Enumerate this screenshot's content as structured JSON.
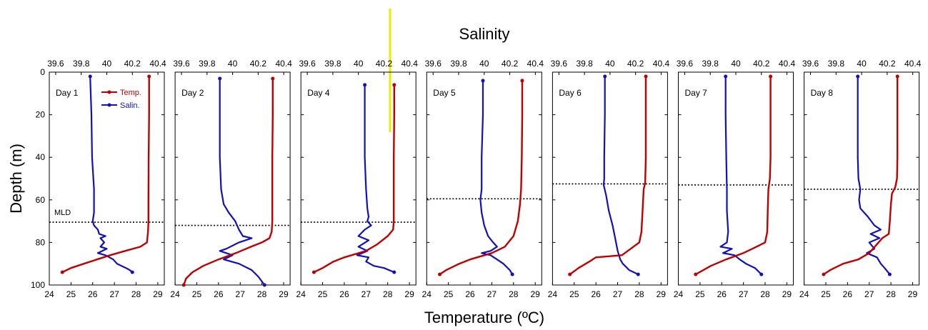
{
  "chart_data": {
    "type": "line",
    "title": "Salinity",
    "xlabel": "Temperature (ºC)",
    "ylabel": "Depth (m)",
    "xlim": [
      24,
      29.3
    ],
    "x2lim": [
      39.55,
      40.45
    ],
    "ylim": [
      0,
      100
    ],
    "y_inverted": true,
    "x_ticks": [
      "24",
      "25",
      "26",
      "27",
      "28",
      "29"
    ],
    "x2_ticks": [
      "39.6",
      "39.8",
      "40",
      "40.2",
      "40.4"
    ],
    "y_ticks": [
      "0",
      "20",
      "40",
      "60",
      "80",
      "100"
    ],
    "colors": {
      "temp": "#c00000",
      "salin": "#1010c0",
      "accent": "#e8ee00"
    },
    "legend": {
      "position": "top-right of first panel",
      "temp_label": "Temp.",
      "salin_label": "Salin."
    },
    "mld_label": "MLD",
    "panels": [
      {
        "label": "Day 1",
        "mld": 70.5,
        "temp": [
          [
            28.6,
            2
          ],
          [
            28.6,
            20
          ],
          [
            28.58,
            40
          ],
          [
            28.57,
            60
          ],
          [
            28.57,
            70
          ],
          [
            28.55,
            75
          ],
          [
            28.5,
            80
          ],
          [
            28.2,
            82
          ],
          [
            27.5,
            84
          ],
          [
            26.8,
            86
          ],
          [
            26.2,
            88
          ],
          [
            25.6,
            90
          ],
          [
            25.0,
            92
          ],
          [
            24.6,
            94
          ]
        ],
        "salin": [
          [
            39.87,
            2
          ],
          [
            39.88,
            20
          ],
          [
            39.885,
            40
          ],
          [
            39.9,
            55
          ],
          [
            39.9,
            66
          ],
          [
            39.89,
            70
          ],
          [
            39.9,
            72
          ],
          [
            39.93,
            74
          ],
          [
            39.94,
            76
          ],
          [
            39.99,
            77
          ],
          [
            39.95,
            78
          ],
          [
            39.98,
            80
          ],
          [
            39.95,
            82
          ],
          [
            40.0,
            83
          ],
          [
            39.93,
            85
          ],
          [
            39.99,
            86
          ],
          [
            40.05,
            88
          ],
          [
            40.08,
            90
          ],
          [
            40.15,
            92
          ],
          [
            40.18,
            93
          ],
          [
            40.2,
            94
          ]
        ]
      },
      {
        "label": "Day 2",
        "mld": 72,
        "temp": [
          [
            28.5,
            3
          ],
          [
            28.5,
            20
          ],
          [
            28.48,
            40
          ],
          [
            28.48,
            60
          ],
          [
            28.48,
            70
          ],
          [
            28.45,
            75
          ],
          [
            28.35,
            78
          ],
          [
            28.0,
            80
          ],
          [
            27.5,
            82
          ],
          [
            26.8,
            85
          ],
          [
            26.0,
            88
          ],
          [
            25.3,
            91
          ],
          [
            24.8,
            94
          ],
          [
            24.5,
            97
          ],
          [
            24.4,
            100
          ]
        ],
        "salin": [
          [
            39.9,
            3
          ],
          [
            39.9,
            20
          ],
          [
            39.9,
            40
          ],
          [
            39.91,
            55
          ],
          [
            39.93,
            62
          ],
          [
            39.97,
            66
          ],
          [
            40.02,
            70
          ],
          [
            40.05,
            74
          ],
          [
            40.08,
            77
          ],
          [
            40.15,
            78
          ],
          [
            40.05,
            80
          ],
          [
            39.95,
            83
          ],
          [
            39.9,
            84
          ],
          [
            40.0,
            86
          ],
          [
            39.93,
            88
          ],
          [
            40.05,
            90
          ],
          [
            40.15,
            93
          ],
          [
            40.2,
            96
          ],
          [
            40.25,
            100
          ]
        ]
      },
      {
        "label": "Day 4",
        "mld": 70.5,
        "temp": [
          [
            28.3,
            6
          ],
          [
            28.3,
            20
          ],
          [
            28.28,
            40
          ],
          [
            28.28,
            60
          ],
          [
            28.28,
            70
          ],
          [
            28.25,
            74
          ],
          [
            28.0,
            77
          ],
          [
            27.5,
            81
          ],
          [
            27.0,
            84
          ],
          [
            26.0,
            87
          ],
          [
            25.5,
            89
          ],
          [
            25.0,
            92
          ],
          [
            24.6,
            94
          ]
        ],
        "salin": [
          [
            40.05,
            6
          ],
          [
            40.05,
            20
          ],
          [
            40.05,
            40
          ],
          [
            40.06,
            55
          ],
          [
            40.07,
            64
          ],
          [
            40.08,
            68
          ],
          [
            40.07,
            70
          ],
          [
            40.1,
            72
          ],
          [
            40.05,
            74
          ],
          [
            40.0,
            77
          ],
          [
            40.08,
            79
          ],
          [
            40.0,
            82
          ],
          [
            40.07,
            84
          ],
          [
            39.99,
            86
          ],
          [
            40.08,
            87
          ],
          [
            40.06,
            89
          ],
          [
            40.12,
            91
          ],
          [
            40.2,
            92
          ],
          [
            40.28,
            94
          ]
        ]
      },
      {
        "label": "Day 5",
        "mld": 59.5,
        "temp": [
          [
            28.4,
            4
          ],
          [
            28.4,
            20
          ],
          [
            28.38,
            40
          ],
          [
            28.35,
            55
          ],
          [
            28.3,
            62
          ],
          [
            28.2,
            70
          ],
          [
            28.0,
            77
          ],
          [
            27.6,
            82
          ],
          [
            27.0,
            85
          ],
          [
            26.0,
            88
          ],
          [
            25.5,
            90
          ],
          [
            24.9,
            93
          ],
          [
            24.6,
            95
          ]
        ],
        "salin": [
          [
            39.99,
            4
          ],
          [
            39.99,
            20
          ],
          [
            39.98,
            40
          ],
          [
            39.98,
            55
          ],
          [
            39.97,
            60
          ],
          [
            39.98,
            66
          ],
          [
            40.0,
            72
          ],
          [
            40.03,
            77
          ],
          [
            40.07,
            80
          ],
          [
            40.1,
            82
          ],
          [
            40.05,
            84
          ],
          [
            39.98,
            85
          ],
          [
            40.05,
            86
          ],
          [
            40.1,
            88
          ],
          [
            40.15,
            90
          ],
          [
            40.2,
            93
          ],
          [
            40.22,
            95
          ]
        ]
      },
      {
        "label": "Day 6",
        "mld": 52.5,
        "temp": [
          [
            28.3,
            2
          ],
          [
            28.3,
            20
          ],
          [
            28.3,
            40
          ],
          [
            28.27,
            52
          ],
          [
            28.2,
            55
          ],
          [
            28.15,
            65
          ],
          [
            28.1,
            75
          ],
          [
            28.0,
            80
          ],
          [
            27.6,
            83
          ],
          [
            27.2,
            86
          ],
          [
            26.0,
            87
          ],
          [
            25.7,
            89
          ],
          [
            25.2,
            92
          ],
          [
            24.8,
            95
          ]
        ],
        "salin": [
          [
            39.96,
            2
          ],
          [
            39.96,
            20
          ],
          [
            39.955,
            40
          ],
          [
            39.955,
            50
          ],
          [
            39.95,
            53
          ],
          [
            39.97,
            58
          ],
          [
            39.99,
            65
          ],
          [
            40.02,
            72
          ],
          [
            40.04,
            78
          ],
          [
            40.06,
            84
          ],
          [
            40.08,
            88
          ],
          [
            40.1,
            90
          ],
          [
            40.15,
            93
          ],
          [
            40.22,
            95
          ]
        ]
      },
      {
        "label": "Day 7",
        "mld": 53,
        "temp": [
          [
            28.25,
            2
          ],
          [
            28.25,
            20
          ],
          [
            28.25,
            40
          ],
          [
            28.22,
            50
          ],
          [
            28.15,
            55
          ],
          [
            28.12,
            65
          ],
          [
            28.1,
            75
          ],
          [
            28.0,
            80
          ],
          [
            27.6,
            82
          ],
          [
            27.0,
            85
          ],
          [
            26.2,
            88
          ],
          [
            25.5,
            91
          ],
          [
            24.8,
            95
          ]
        ],
        "salin": [
          [
            39.92,
            2
          ],
          [
            39.92,
            20
          ],
          [
            39.925,
            40
          ],
          [
            39.93,
            55
          ],
          [
            39.93,
            65
          ],
          [
            39.94,
            75
          ],
          [
            39.93,
            80
          ],
          [
            39.88,
            82
          ],
          [
            39.97,
            83
          ],
          [
            39.9,
            85
          ],
          [
            39.99,
            86
          ],
          [
            40.03,
            88
          ],
          [
            40.08,
            90
          ],
          [
            40.15,
            92
          ],
          [
            40.2,
            95
          ]
        ]
      },
      {
        "label": "Day 8",
        "mld": 55,
        "temp": [
          [
            28.3,
            2
          ],
          [
            28.3,
            20
          ],
          [
            28.3,
            40
          ],
          [
            28.28,
            50
          ],
          [
            28.2,
            54
          ],
          [
            28.05,
            57
          ],
          [
            28.0,
            62
          ],
          [
            27.95,
            70
          ],
          [
            27.9,
            76
          ],
          [
            27.6,
            78
          ],
          [
            27.0,
            85
          ],
          [
            26.5,
            88
          ],
          [
            25.8,
            90
          ],
          [
            25.2,
            93
          ],
          [
            24.9,
            95
          ]
        ],
        "salin": [
          [
            39.97,
            2
          ],
          [
            39.97,
            20
          ],
          [
            39.97,
            40
          ],
          [
            39.975,
            50
          ],
          [
            39.99,
            55
          ],
          [
            39.98,
            60
          ],
          [
            39.99,
            64
          ],
          [
            40.05,
            68
          ],
          [
            40.1,
            72
          ],
          [
            40.15,
            74
          ],
          [
            40.07,
            76
          ],
          [
            40.14,
            78
          ],
          [
            40.06,
            80
          ],
          [
            40.1,
            83
          ],
          [
            40.04,
            85
          ],
          [
            40.12,
            87
          ],
          [
            40.15,
            90
          ],
          [
            40.18,
            92
          ],
          [
            40.22,
            95
          ]
        ]
      }
    ]
  }
}
